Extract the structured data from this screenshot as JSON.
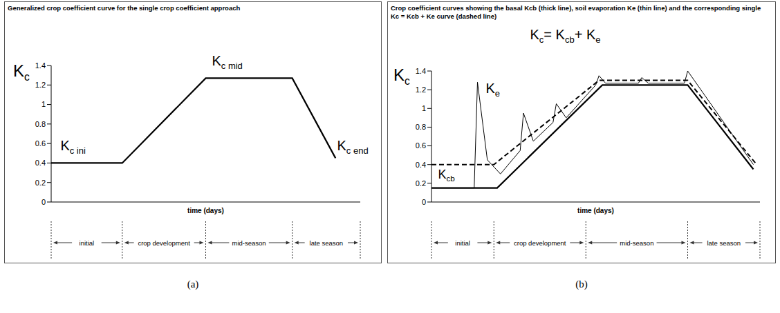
{
  "chart_data": [
    {
      "type": "line",
      "panel": "(a)",
      "title": "Generalized crop coefficient curve for the single crop coefficient approach",
      "y_label": "Kc",
      "x_label": "time (days)",
      "xlim": [
        0,
        100
      ],
      "ylim": [
        0,
        1.4
      ],
      "yticks": [
        0,
        0.2,
        0.4,
        0.6,
        0.8,
        1,
        1.2,
        1.4
      ],
      "tick_labels": "y",
      "grid": false,
      "stages": {
        "names": [
          "initial",
          "crop development",
          "mid-season",
          "late season"
        ],
        "bounds": [
          0,
          23,
          50,
          78,
          100
        ]
      },
      "series": [
        {
          "name": "Kc",
          "color": "#000000",
          "line_style": "solid",
          "x": [
            0,
            23,
            50,
            78,
            92
          ],
          "values": [
            0.4,
            0.4,
            1.27,
            1.27,
            0.45
          ]
        }
      ],
      "annotations": [
        "Kc ini",
        "Kc mid",
        "Kc end"
      ]
    },
    {
      "type": "line",
      "panel": "(b)",
      "title": "Crop coefficient curves showing the basal Kcb (thick line), soil evaporation Ke (thin line) and the corresponding single Kc = Kcb + Ke curve (dashed line)",
      "y_label": "Kc",
      "x_label": "time (days)",
      "xlim": [
        0,
        100
      ],
      "ylim": [
        0,
        1.4
      ],
      "yticks": [
        0,
        0.2,
        0.4,
        0.6,
        0.8,
        1,
        1.2,
        1.4
      ],
      "tick_labels": "y",
      "grid": false,
      "stages": {
        "names": [
          "initial",
          "crop development",
          "mid-season",
          "late season"
        ],
        "bounds": [
          0,
          19,
          47,
          78,
          100
        ]
      },
      "series": [
        {
          "name": "Kcb",
          "color": "#000000",
          "line_style": "solid",
          "x": [
            0,
            20,
            52,
            78,
            98
          ],
          "values": [
            0.15,
            0.15,
            1.25,
            1.25,
            0.35
          ]
        },
        {
          "name": "Ke",
          "color": "#000000",
          "line_style": "thin",
          "x": [
            0,
            13,
            14,
            17,
            21,
            27,
            28,
            31,
            37,
            38,
            41,
            50,
            51,
            53,
            63,
            64,
            66,
            77,
            78,
            80,
            98
          ],
          "values": [
            0.15,
            0.15,
            1.28,
            0.45,
            0.3,
            0.55,
            0.95,
            0.65,
            0.85,
            1.05,
            0.9,
            1.25,
            1.35,
            1.27,
            1.27,
            1.33,
            1.27,
            1.27,
            1.4,
            1.3,
            0.4
          ]
        },
        {
          "name": "Kc",
          "color": "#000000",
          "line_style": "dashed",
          "x": [
            0,
            19,
            51,
            78,
            99
          ],
          "values": [
            0.4,
            0.4,
            1.3,
            1.3,
            0.4
          ]
        }
      ],
      "annotations": [
        "Kc= Kcb+ Ke",
        "Ke",
        "Kcb"
      ]
    }
  ]
}
